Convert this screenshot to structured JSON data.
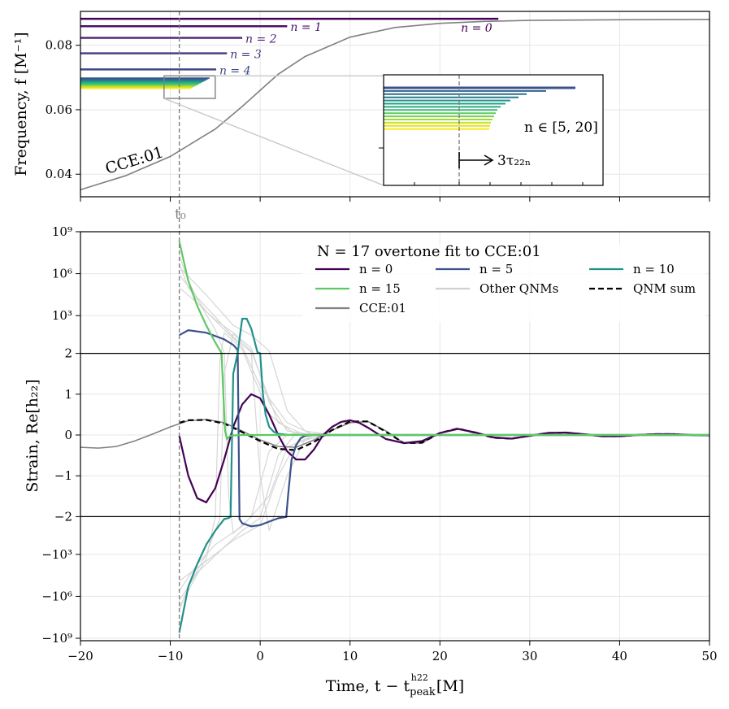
{
  "chart_data": [
    {
      "type": "line",
      "panel": "top",
      "ylabel": "Frequency, f  [M⁻¹]",
      "xlim": [
        -20,
        50
      ],
      "ylim": [
        0.033,
        0.0905
      ],
      "yticks": [
        0.04,
        0.06,
        0.08
      ],
      "ytick_labels": [
        "0.04",
        "0.06",
        "0.08"
      ],
      "xticks": [
        -20,
        -10,
        0,
        10,
        20,
        30,
        40,
        50
      ],
      "grid": true,
      "t0": -9,
      "t0_label": "t₀",
      "cce_label": "CCE:01",
      "cce_frequency": {
        "x": [
          -20,
          -15,
          -10,
          -5,
          -2,
          0,
          2,
          5,
          10,
          15,
          20,
          25,
          30,
          40,
          50
        ],
        "y": [
          0.0352,
          0.0395,
          0.0455,
          0.054,
          0.061,
          0.066,
          0.071,
          0.0765,
          0.0825,
          0.0855,
          0.0868,
          0.0874,
          0.0877,
          0.0879,
          0.088
        ]
      },
      "overtone_lines": [
        {
          "name": "n = 0",
          "label": "n = 0",
          "n": 0,
          "value": 0.0882,
          "end": 26.5,
          "color": "#440154"
        },
        {
          "name": "n = 1",
          "label": "n = 1",
          "n": 1,
          "value": 0.0859,
          "end": 3.0,
          "color": "#471365"
        },
        {
          "name": "n = 2",
          "label": "n = 2",
          "n": 2,
          "value": 0.0823,
          "end": -2.0,
          "color": "#482475"
        },
        {
          "name": "n = 3",
          "label": "n = 3",
          "n": 3,
          "value": 0.0775,
          "end": -3.7,
          "color": "#453781"
        },
        {
          "name": "n = 4",
          "label": "n = 4",
          "n": 4,
          "value": 0.0725,
          "end": -4.9,
          "color": "#404788"
        }
      ],
      "overtone_band_range": "n ∈ [5, 20]",
      "inset_annotation": "3τ₂₂ₙ",
      "colors": {
        "cce": "#808080",
        "t0_line": "#808080",
        "band": [
          "#3b528b",
          "#33638d",
          "#2c728e",
          "#287d8e",
          "#21918c",
          "#20a386",
          "#28ae80",
          "#3bbb75",
          "#5ec962",
          "#7ad151",
          "#a0da39",
          "#c8e020",
          "#e2e418",
          "#fde725"
        ]
      }
    },
    {
      "type": "line",
      "panel": "bottom",
      "title": "N = 17 overtone fit to CCE:01",
      "xlabel": "Time, t − t",
      "xlabel_sup": "h22",
      "xlabel_sub": "peak",
      "xlabel_unit": " [M]",
      "ylabel": "Strain, Re[h₂₂]",
      "xlim": [
        -20,
        50
      ],
      "xticks": [
        -20,
        -10,
        0,
        10,
        20,
        30,
        40,
        50
      ],
      "xtick_labels": [
        "−20",
        "−10",
        "0",
        "10",
        "20",
        "30",
        "40",
        "50"
      ],
      "ytick_labels": [
        "−10⁹",
        "−10⁶",
        "−10³",
        "−2",
        "−1",
        "0",
        "1",
        "2",
        "10³",
        "10⁶",
        "10⁹"
      ],
      "yscale": "symlog",
      "linthresh": 2,
      "grid": true,
      "legend": {
        "placement": "upper-center",
        "ncol": 3,
        "entries": [
          {
            "name": "n = 0",
            "color": "#440154",
            "style": "solid"
          },
          {
            "name": "n = 5",
            "color": "#3b528b",
            "style": "solid"
          },
          {
            "name": "n = 10",
            "color": "#21918c",
            "style": "solid"
          },
          {
            "name": "n = 15",
            "color": "#5ec962",
            "style": "solid"
          },
          {
            "name": "Other QNMs",
            "color": "#d0d0d0",
            "style": "solid"
          },
          {
            "name": "QNM sum",
            "color": "#000000",
            "style": "dashed"
          },
          {
            "name": "CCE:01",
            "color": "#808080",
            "style": "solid"
          }
        ]
      },
      "series": [
        {
          "name": "CCE:01",
          "color": "#808080",
          "x": [
            -20,
            -18,
            -16,
            -14,
            -12,
            -10,
            -8,
            -6,
            -4,
            -2,
            0,
            2,
            4,
            6,
            8,
            10,
            12,
            14,
            16,
            18,
            20,
            22,
            24,
            26,
            28,
            30,
            32,
            34,
            36,
            38,
            40,
            42,
            44,
            46,
            48,
            50
          ],
          "y": [
            -0.3,
            -0.32,
            -0.28,
            -0.15,
            0.02,
            0.2,
            0.35,
            0.38,
            0.3,
            0.1,
            -0.12,
            -0.28,
            -0.3,
            -0.12,
            0.12,
            0.3,
            0.33,
            0.1,
            -0.2,
            -0.2,
            0.05,
            0.16,
            0.05,
            -0.07,
            -0.09,
            -0.02,
            0.05,
            0.06,
            0.02,
            -0.03,
            -0.03,
            0.0,
            0.02,
            0.02,
            0.0,
            -0.01
          ]
        },
        {
          "name": "QNM sum",
          "color": "#000000",
          "dashed": true,
          "x": [
            -9,
            -8,
            -6,
            -4,
            -2,
            0,
            2,
            4,
            6,
            8,
            10,
            12,
            14,
            16,
            18,
            20,
            22,
            24,
            26,
            28,
            30,
            32,
            34,
            36,
            38,
            40,
            42,
            44,
            46,
            48,
            50
          ],
          "y": [
            0.3,
            0.36,
            0.37,
            0.28,
            0.07,
            -0.15,
            -0.34,
            -0.37,
            -0.17,
            0.12,
            0.33,
            0.33,
            0.08,
            -0.2,
            -0.19,
            0.05,
            0.16,
            0.05,
            -0.07,
            -0.09,
            -0.02,
            0.05,
            0.06,
            0.02,
            -0.03,
            -0.03,
            0.0,
            0.02,
            0.02,
            0.0,
            -0.01
          ]
        },
        {
          "name": "n = 0",
          "color": "#440154",
          "x": [
            -9,
            -8,
            -7,
            -6,
            -5,
            -4,
            -3,
            -2,
            -1,
            0,
            1,
            2,
            3,
            4,
            5,
            6,
            7,
            8,
            9,
            10,
            11,
            12,
            14,
            16,
            18,
            20,
            22,
            24,
            26,
            28,
            30,
            32,
            34,
            36,
            38,
            40,
            42,
            44,
            46,
            48,
            50
          ],
          "y": [
            -0.02,
            -1.0,
            -1.55,
            -1.65,
            -1.3,
            -0.6,
            0.2,
            0.75,
            1.0,
            0.9,
            0.5,
            0.0,
            -0.4,
            -0.6,
            -0.6,
            -0.35,
            0.0,
            0.2,
            0.32,
            0.36,
            0.3,
            0.18,
            -0.1,
            -0.2,
            -0.15,
            0.05,
            0.15,
            0.06,
            -0.06,
            -0.09,
            -0.02,
            0.05,
            0.06,
            0.02,
            -0.03,
            -0.03,
            0.0,
            0.02,
            0.02,
            0.0,
            -0.01
          ]
        },
        {
          "name": "n = 5",
          "color": "#3b528b",
          "x": [
            -9,
            -8,
            -6,
            -4,
            -3,
            -2.6,
            -2.5,
            -2.3,
            -2,
            -1,
            0,
            1,
            2,
            2.9,
            3.1,
            3.5,
            4,
            4.5,
            5,
            5.5,
            6,
            7,
            8,
            10,
            20,
            30,
            40,
            50
          ],
          "y": [
            40,
            90,
            60,
            20,
            8,
            4.2,
            3.0,
            -3.0,
            -6,
            -10,
            -8,
            -4.5,
            -2.6,
            -2.1,
            -1.5,
            -0.6,
            -0.25,
            -0.08,
            -0.02,
            -0.005,
            0,
            0,
            0,
            0,
            0,
            0,
            0,
            0
          ]
        },
        {
          "name": "n = 10",
          "color": "#21918c",
          "x": [
            -9,
            -8,
            -7,
            -6,
            -5,
            -4,
            -3.5,
            -3.3,
            -3.0,
            -2.5,
            -2,
            -1.5,
            -1,
            -0.3,
            0,
            0.3,
            0.6,
            1,
            1.5,
            2,
            3,
            5,
            10,
            20,
            30,
            40,
            50
          ],
          "y": [
            -400000000,
            -200000,
            -5000,
            -200,
            -20,
            -3.0,
            -2.5,
            -2.0,
            1.5,
            2.2,
            600,
            600,
            120,
            2.4,
            2.0,
            1.0,
            0.5,
            0.2,
            0.08,
            0.03,
            0.005,
            0,
            0,
            0,
            0,
            0,
            0
          ]
        },
        {
          "name": "n = 15",
          "color": "#5ec962",
          "x": [
            -9,
            -8,
            -7,
            -6,
            -5,
            -4.3,
            -4.1,
            -3.9,
            -3.7,
            -3.5,
            -3.3,
            -3,
            -2,
            -1,
            0,
            2,
            5,
            10,
            20,
            30,
            40,
            50
          ],
          "y": [
            200000000,
            300000,
            5000,
            200,
            12,
            2.1,
            1.0,
            0.1,
            -0.1,
            -0.05,
            -0.02,
            -0.01,
            0,
            0,
            0,
            0,
            0,
            0,
            0,
            0,
            0,
            0
          ]
        }
      ]
    }
  ]
}
